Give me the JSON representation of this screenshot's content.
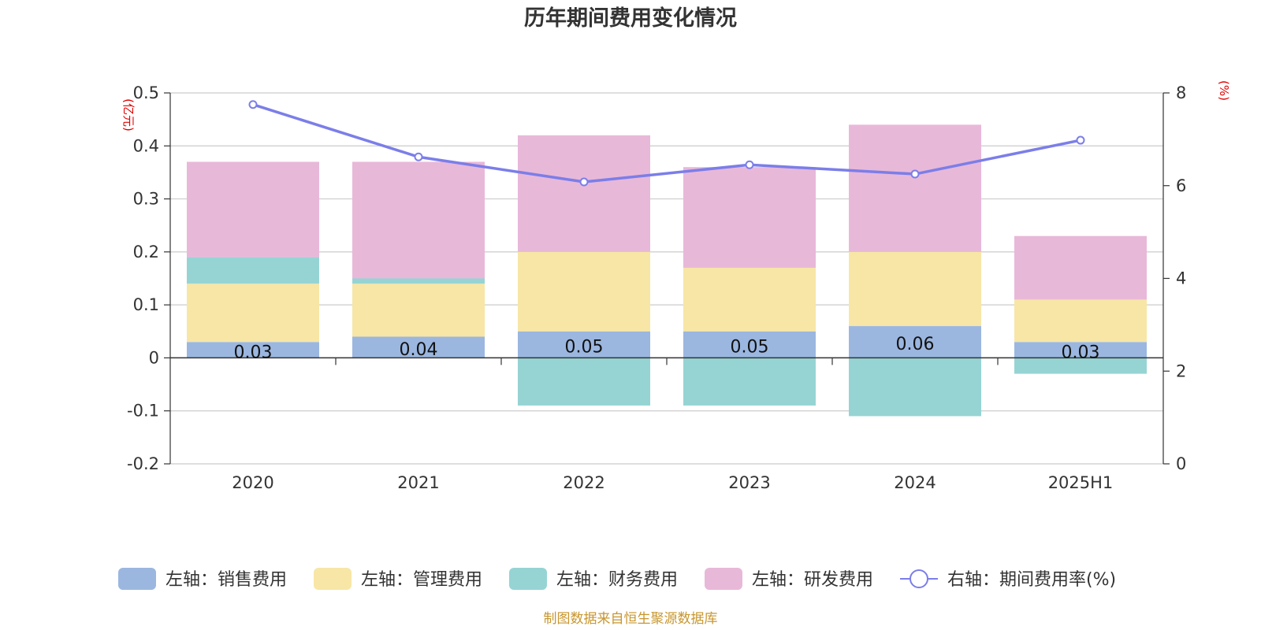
{
  "chart_data": {
    "type": "bar",
    "stacked": true,
    "title": "历年期间费用变化情况",
    "left_axis": {
      "unit": "(亿元)",
      "ylim": [
        -0.2,
        0.5
      ],
      "ticks": [
        "0.5",
        "0.4",
        "0.3",
        "0.2",
        "0.1",
        "0",
        "-0.1",
        "-0.2"
      ],
      "tick_values": [
        0.5,
        0.4,
        0.3,
        0.2,
        0.1,
        0,
        -0.1,
        -0.2
      ]
    },
    "right_axis": {
      "unit": "(%)",
      "ylim": [
        0,
        8
      ],
      "ticks": [
        "8",
        "6",
        "4",
        "2",
        "0"
      ],
      "tick_values": [
        8,
        6,
        4,
        2,
        0
      ]
    },
    "categories": [
      "2020",
      "2021",
      "2022",
      "2023",
      "2024",
      "2025H1"
    ],
    "series": [
      {
        "name": "左轴：销售费用",
        "axis": "left",
        "color": "#9bb7e0",
        "values": [
          0.03,
          0.04,
          0.05,
          0.05,
          0.06,
          0.03
        ],
        "labels": [
          "0.03",
          "0.04",
          "0.05",
          "0.05",
          "0.06",
          "0.03"
        ]
      },
      {
        "name": "左轴：管理费用",
        "axis": "left",
        "color": "#f7e6a6",
        "values": [
          0.11,
          0.1,
          0.15,
          0.12,
          0.14,
          0.08
        ]
      },
      {
        "name": "左轴：财务费用",
        "axis": "left",
        "color": "#96d4d4",
        "values": [
          0.05,
          0.01,
          -0.09,
          -0.09,
          -0.11,
          -0.03
        ]
      },
      {
        "name": "左轴：研发费用",
        "axis": "left",
        "color": "#e8b8d9",
        "values": [
          0.18,
          0.22,
          0.22,
          0.19,
          0.24,
          0.12
        ]
      },
      {
        "name": "右轴：期间费用率(%)",
        "axis": "right",
        "type": "line",
        "color": "#7b7ee8",
        "values": [
          7.75,
          6.62,
          6.08,
          6.45,
          6.25,
          6.98
        ]
      }
    ],
    "legend": "bottom",
    "grid": true
  },
  "source_note": "制图数据来自恒生聚源数据库"
}
